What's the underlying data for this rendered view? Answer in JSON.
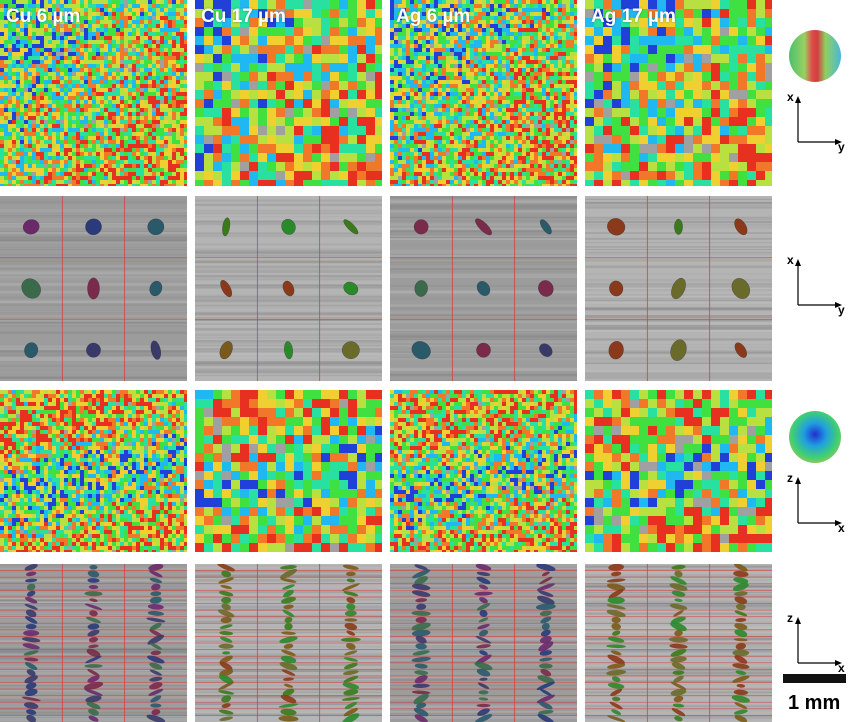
{
  "columns": [
    {
      "label": "Cu 6 µm",
      "grain": "fine"
    },
    {
      "label": "Cu 17 µm",
      "grain": "coarse"
    },
    {
      "label": "Ag 6 µm",
      "grain": "fine"
    },
    {
      "label": "Ag 17 µm",
      "grain": "coarse"
    }
  ],
  "rows": [
    {
      "kind": "color-map",
      "orientation": "x-y"
    },
    {
      "kind": "ellipse-grid",
      "orientation": "x-y"
    },
    {
      "kind": "color-map",
      "orientation": "z-x"
    },
    {
      "kind": "ellipse-stack",
      "orientation": "z-x"
    }
  ],
  "axes": {
    "row1": {
      "vertical": "x",
      "horizontal": "y"
    },
    "row2": {
      "vertical": "x",
      "horizontal": "y"
    },
    "row3": {
      "vertical": "z",
      "horizontal": "x"
    },
    "row4": {
      "vertical": "z",
      "horizontal": "x"
    }
  },
  "scalebar": {
    "label": "1 mm"
  },
  "colors": {
    "map_palette": [
      "#2040d8",
      "#20b8f0",
      "#28e0a0",
      "#40e040",
      "#b8e040",
      "#f0d030",
      "#f07828",
      "#e83020",
      "#a0a0a0"
    ],
    "grid_line": "#d84040",
    "greyscale_background": "#a8a8a8",
    "ellipse_palette_fine": [
      "#6a2a6a",
      "#3a3a6a",
      "#2a5a6a",
      "#3a6a4a",
      "#7a2a4a",
      "#2a3a7a"
    ],
    "ellipse_palette_coarse": [
      "#2a8a2a",
      "#6a6a2a",
      "#8a3a1a",
      "#3a7a1a",
      "#7a5a1a"
    ]
  }
}
